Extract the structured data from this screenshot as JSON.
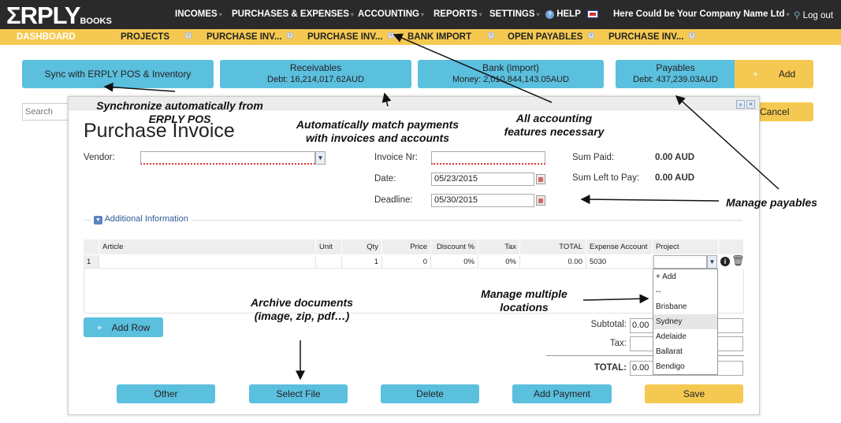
{
  "brand": {
    "logo": "ΣRPLY",
    "logo_sub": "BOOKS"
  },
  "nav": {
    "items": [
      "INCOMES",
      "PURCHASES & EXPENSES",
      "ACCOUNTING",
      "REPORTS",
      "SETTINGS"
    ],
    "help": "HELP",
    "company": "Here Could be Your Company Name Ltd",
    "logout": "Log out"
  },
  "tabs": [
    "DASHBOARD",
    "PROJECTS",
    "PURCHASE INV...",
    "PURCHASE INV...",
    "BANK IMPORT",
    "OPEN PAYABLES",
    "PURCHASE INV..."
  ],
  "dashboard": {
    "sync": "Sync with ERPLY POS & Inventory",
    "receivables": {
      "title": "Receivables",
      "sub": "Debt: 16,214,017.62AUD"
    },
    "bank": {
      "title": "Bank (import)",
      "sub": "Money: 2,010,844,143.05AUD"
    },
    "payables": {
      "title": "Payables",
      "sub": "Debt: 437,239.03AUD"
    },
    "add": "Add",
    "search_placeholder": "Search",
    "cancel": "Cancel"
  },
  "invoice": {
    "title": "Purchase Invoice",
    "vendor_label": "Vendor:",
    "vendor_value": "",
    "invoice_nr_label": "Invoice Nr:",
    "invoice_nr_value": "",
    "date_label": "Date:",
    "date_value": "05/23/2015",
    "deadline_label": "Deadline:",
    "deadline_value": "05/30/2015",
    "sum_paid_label": "Sum Paid:",
    "sum_paid_value": "0.00 AUD",
    "sum_left_label": "Sum Left to Pay:",
    "sum_left_value": "0.00 AUD",
    "additional_info": "Additional Information",
    "columns": [
      "Article",
      "Unit",
      "Qty",
      "Price",
      "Discount %",
      "Tax",
      "TOTAL",
      "Expense Account",
      "Project"
    ],
    "rows": [
      {
        "n": "1",
        "article": "",
        "unit": "",
        "qty": "1",
        "price": "0",
        "discount": "0%",
        "tax": "0%",
        "total": "0.00",
        "expense": "5030",
        "project": ""
      }
    ],
    "project_options": [
      "+ Add",
      "--",
      "Brisbane",
      "Sydney",
      "Adelaide",
      "Ballarat",
      "Bendigo"
    ],
    "project_highlighted": "Sydney",
    "add_row": "Add Row",
    "subtotal_label": "Subtotal:",
    "subtotal_value": "0.00",
    "tax_label": "Tax:",
    "tax_value": "",
    "total_label": "TOTAL:",
    "total_value": "0.00",
    "buttons": {
      "other": "Other",
      "select_file": "Select File",
      "delete": "Delete",
      "add_payment": "Add Payment",
      "save": "Save"
    }
  },
  "annotations": {
    "sync": "Synchronize automatically from ERPLY POS",
    "match": "Automatically match payments with invoices and accounts",
    "accounting": "All accounting features necessary",
    "payables": "Manage payables",
    "locations": "Manage multiple locations",
    "archive": "Archive documents (image, zip, pdf…)"
  },
  "colors": {
    "topbar": "#2a2a2a",
    "tabbar": "#f5c951",
    "blue_button": "#5bbfde",
    "yellow_button": "#f5c951"
  }
}
